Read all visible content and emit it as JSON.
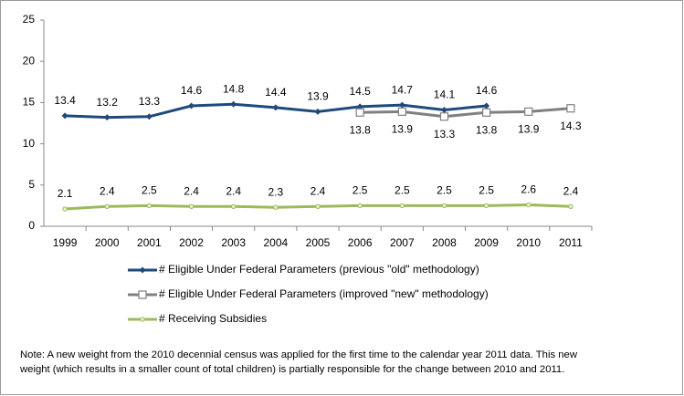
{
  "chart_data": {
    "type": "line",
    "categories": [
      "1999",
      "2000",
      "2001",
      "2002",
      "2003",
      "2004",
      "2005",
      "2006",
      "2007",
      "2008",
      "2009",
      "2010",
      "2011"
    ],
    "series": [
      {
        "name": "# Eligible Under Federal Parameters (previous \"old\" methodology)",
        "color": "#1f497d",
        "marker": "diamond",
        "label_position": "above",
        "values": [
          13.4,
          13.2,
          13.3,
          14.6,
          14.8,
          14.4,
          13.9,
          14.5,
          14.7,
          14.1,
          14.6,
          null,
          null
        ]
      },
      {
        "name": "# Eligible Under Federal Parameters (improved \"new\" methodology)",
        "color": "#808080",
        "marker": "square",
        "label_position": "below",
        "values": [
          null,
          null,
          null,
          null,
          null,
          null,
          null,
          13.8,
          13.9,
          13.3,
          13.8,
          13.9,
          14.3
        ]
      },
      {
        "name": "# Receiving Subsidies",
        "color": "#9bbb59",
        "marker": "circle",
        "label_position": "above",
        "values": [
          2.1,
          2.4,
          2.5,
          2.4,
          2.4,
          2.3,
          2.4,
          2.5,
          2.5,
          2.5,
          2.5,
          2.6,
          2.4
        ]
      }
    ],
    "ylim": [
      0,
      25
    ],
    "yticks": [
      0,
      5,
      10,
      15,
      20,
      25
    ],
    "grid": false,
    "legend": "bottom",
    "note": [
      "Note: A new weight from the 2010 decennial census was applied for the first time to the calendar year 2011 data.  This new",
      "weight (which results in a smaller count of total children) is partially responsible for the change between 2010 and 2011."
    ]
  }
}
